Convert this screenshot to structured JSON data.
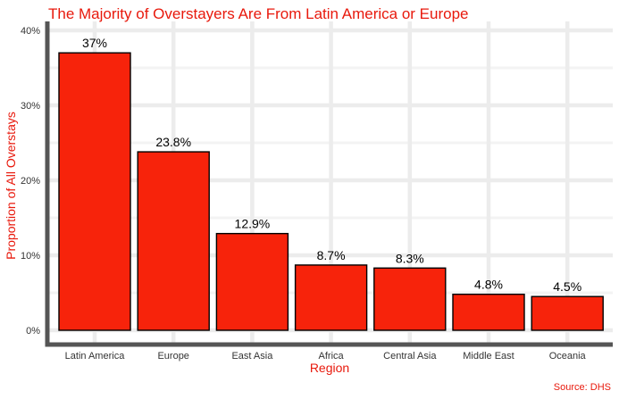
{
  "chart_data": {
    "type": "bar",
    "title": "The Majority of Overstayers Are From Latin America or Europe",
    "xlabel": "Region",
    "ylabel": "Proportion of All Overstays",
    "caption": "Source: DHS",
    "categories": [
      "Latin America",
      "Europe",
      "East Asia",
      "Africa",
      "Central Asia",
      "Middle East",
      "Oceania"
    ],
    "values": [
      37,
      23.8,
      12.9,
      8.7,
      8.3,
      4.8,
      4.5
    ],
    "data_labels": [
      "37%",
      "23.8%",
      "12.9%",
      "8.7%",
      "8.3%",
      "4.8%",
      "4.5%"
    ],
    "y_ticks": [
      0,
      10,
      20,
      30,
      40
    ],
    "y_tick_labels": [
      "0%",
      "10%",
      "20%",
      "30%",
      "40%"
    ],
    "ylim": [
      0,
      40
    ],
    "grid": true,
    "legend": "none",
    "colors": {
      "bar_fill": "#f7230b",
      "bar_stroke": "#000000",
      "accent_text": "#e8190c",
      "axis": "#555555",
      "grid": "#ececec"
    }
  }
}
